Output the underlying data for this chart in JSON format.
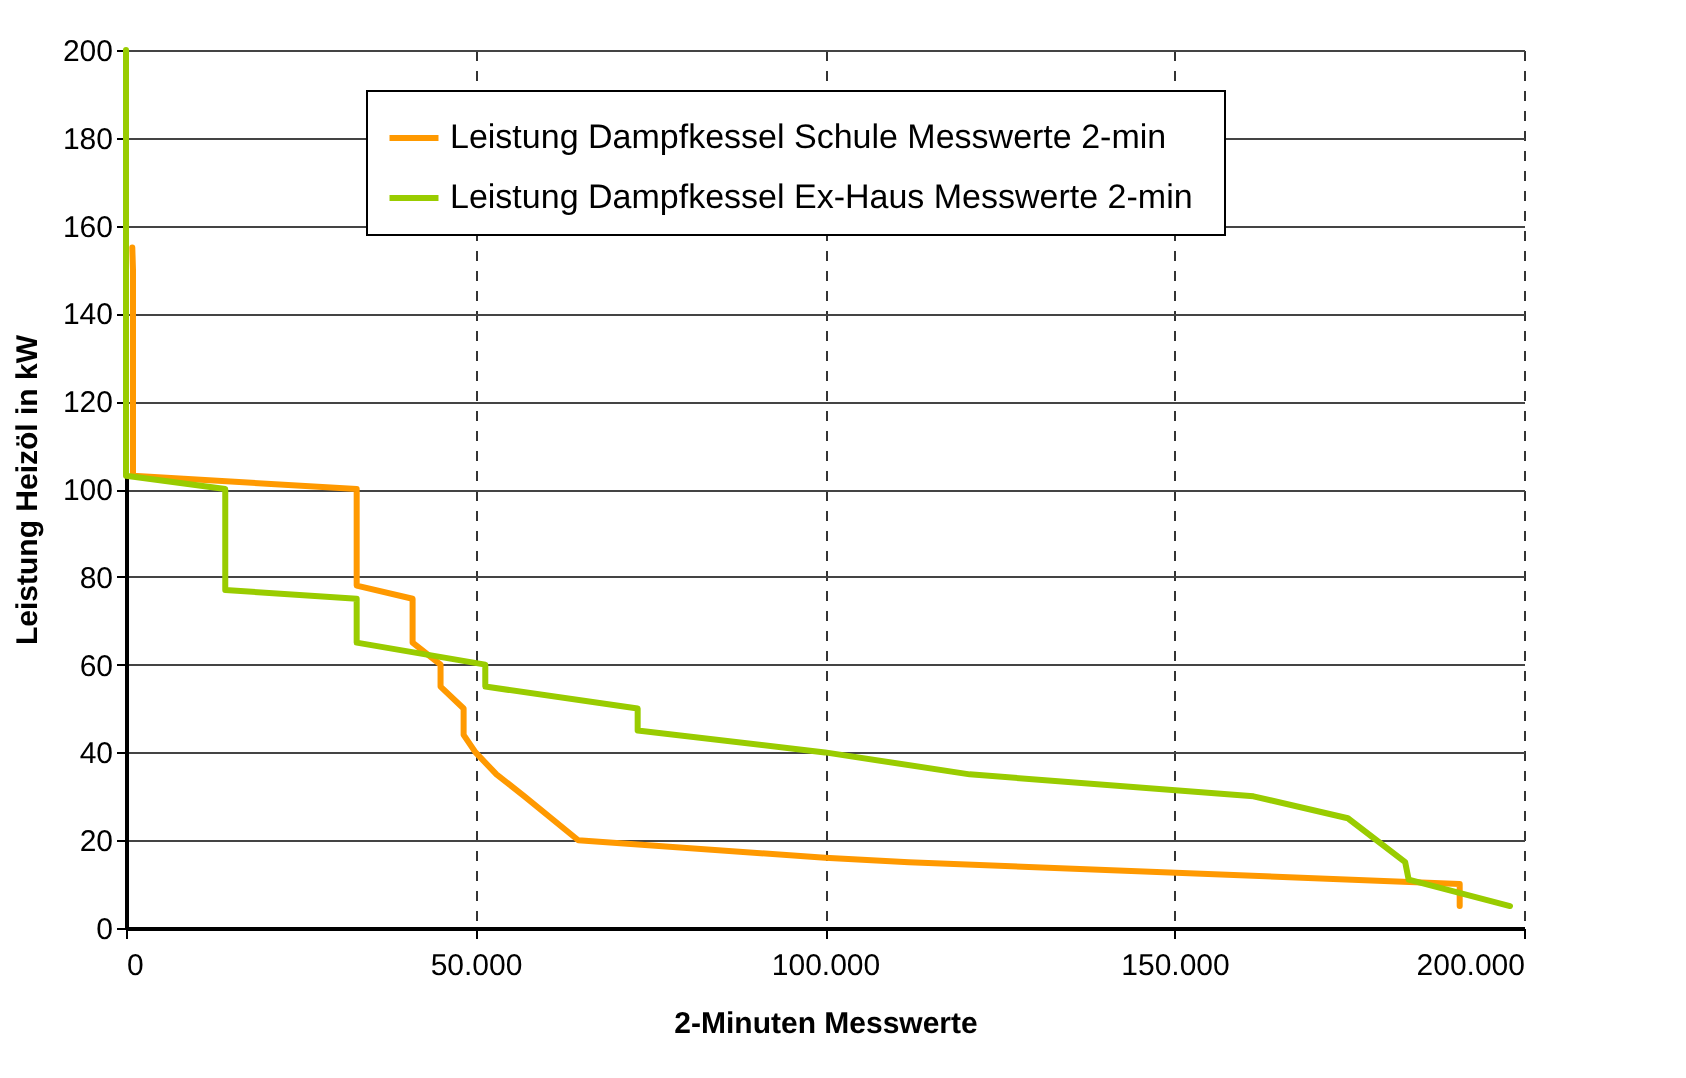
{
  "chart_data": {
    "type": "line",
    "xlabel": "2-Minuten Messwerte",
    "ylabel": "Leistung Heizöl in kW",
    "xlim": [
      0,
      200000
    ],
    "ylim": [
      0,
      200
    ],
    "xticks": [
      0,
      {
        "value": 50000,
        "label": "50.000"
      },
      {
        "value": 100000,
        "label": "100.000"
      },
      {
        "value": 150000,
        "label": "150.000"
      },
      {
        "value": 200000,
        "label": "200.000"
      }
    ],
    "yticks": [
      0,
      20,
      40,
      60,
      80,
      100,
      120,
      140,
      160,
      180,
      200
    ],
    "grid": true,
    "legend": "top",
    "marker": "none",
    "line_style": "solid",
    "series": [
      {
        "name": "Leistung Dampfkessel Schule Messwerte 2-min",
        "color": "#ff9900",
        "x": [
          900,
          1000,
          1000,
          33000,
          33000,
          41000,
          41000,
          45000,
          45000,
          48300,
          48300,
          50000,
          53000,
          57000,
          64700,
          100000,
          112000,
          190800,
          190800
        ],
        "values": [
          155,
          150,
          103,
          100,
          78,
          75,
          65,
          60,
          55,
          50,
          44,
          40,
          35,
          30,
          20,
          16,
          15,
          10,
          5
        ]
      },
      {
        "name": "Leistung Dampfkessel Ex-Haus  Messwerte 2-min",
        "color": "#99cc00",
        "x": [
          0,
          0,
          14200,
          14200,
          33000,
          33000,
          51400,
          51400,
          73200,
          73200,
          100000,
          120700,
          161300,
          174800,
          183000,
          183500,
          198000
        ],
        "values": [
          200,
          103,
          100,
          77,
          75,
          65,
          60,
          55,
          50,
          45,
          40,
          35,
          30,
          25,
          15,
          11,
          5
        ]
      }
    ]
  }
}
